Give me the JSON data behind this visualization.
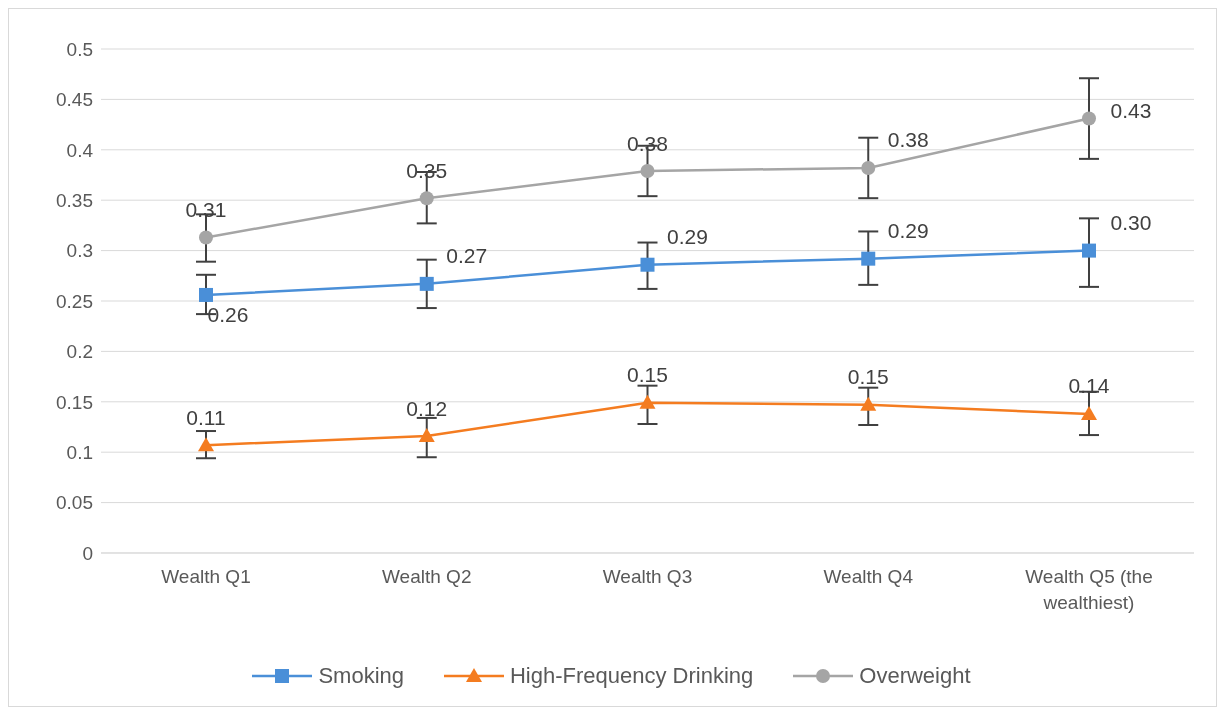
{
  "chart_data": {
    "type": "line",
    "categories": [
      "Wealth Q1",
      "Wealth Q2",
      "Wealth Q3",
      "Wealth Q4",
      "Wealth Q5 (the wealthiest)"
    ],
    "series": [
      {
        "name": "Smoking",
        "color": "#4a8fd8",
        "marker": "square",
        "values": [
          0.256,
          0.267,
          0.286,
          0.292,
          0.3
        ],
        "errors": [
          [
            0.237,
            0.276
          ],
          [
            0.243,
            0.291
          ],
          [
            0.262,
            0.308
          ],
          [
            0.266,
            0.319
          ],
          [
            0.264,
            0.332
          ]
        ],
        "value_labels": [
          "0.26",
          "0.27",
          "0.29",
          "0.29",
          "0.30"
        ]
      },
      {
        "name": "High-Frequency Drinking",
        "color": "#f47c20",
        "marker": "triangle",
        "values": [
          0.107,
          0.116,
          0.149,
          0.147,
          0.138
        ],
        "errors": [
          [
            0.094,
            0.121
          ],
          [
            0.095,
            0.134
          ],
          [
            0.128,
            0.166
          ],
          [
            0.127,
            0.164
          ],
          [
            0.117,
            0.16
          ]
        ],
        "value_labels": [
          "0.11",
          "0.12",
          "0.15",
          "0.15",
          "0.14"
        ]
      },
      {
        "name": "Overweight",
        "color": "#a5a5a5",
        "marker": "circle",
        "values": [
          0.313,
          0.352,
          0.379,
          0.382,
          0.431
        ],
        "errors": [
          [
            0.289,
            0.336
          ],
          [
            0.327,
            0.378
          ],
          [
            0.354,
            0.404
          ],
          [
            0.352,
            0.412
          ],
          [
            0.391,
            0.471
          ]
        ],
        "value_labels": [
          "0.31",
          "0.35",
          "0.38",
          "0.38",
          "0.43"
        ]
      }
    ],
    "ylim": [
      0,
      0.5
    ],
    "yticks": [
      0,
      0.05,
      0.1,
      0.15,
      0.2,
      0.25,
      0.3,
      0.35,
      0.4,
      0.45,
      0.5
    ],
    "grid": "y",
    "legend": "bottom",
    "line_style": "solid"
  }
}
